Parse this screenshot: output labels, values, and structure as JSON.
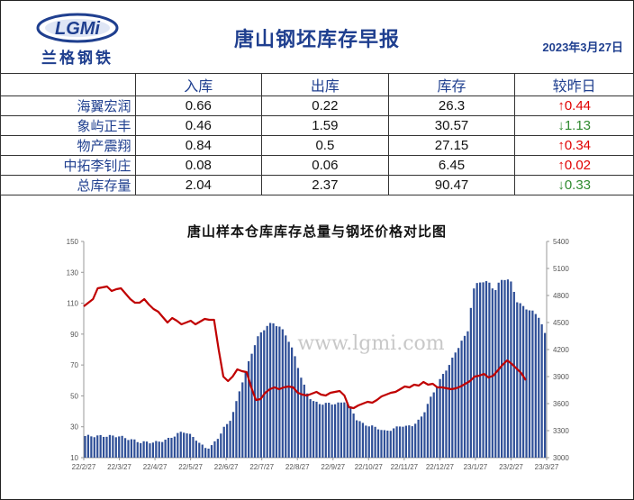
{
  "header": {
    "logo_text": "兰格钢铁",
    "logo_mark": "LGMi",
    "title": "唐山钢坯库存早报",
    "date": "2023年3月27日"
  },
  "table": {
    "columns": [
      "",
      "入库",
      "出库",
      "库存",
      "较昨日"
    ],
    "rows": [
      {
        "name": "海翼宏润",
        "in": "0.66",
        "out": "0.22",
        "stock": "26.3",
        "arrow": "↑",
        "change": "0.44",
        "dir": "up"
      },
      {
        "name": "象屿正丰",
        "in": "0.46",
        "out": "1.59",
        "stock": "30.57",
        "arrow": "↓",
        "change": "1.13",
        "dir": "down"
      },
      {
        "name": "物产震翔",
        "in": "0.84",
        "out": "0.5",
        "stock": "27.15",
        "arrow": "↑",
        "change": "0.34",
        "dir": "up"
      },
      {
        "name": "中拓李钊庄",
        "in": "0.08",
        "out": "0.06",
        "stock": "6.45",
        "arrow": "↑",
        "change": "0.02",
        "dir": "up"
      },
      {
        "name": "总库存量",
        "in": "2.04",
        "out": "2.37",
        "stock": "90.47",
        "arrow": "↓",
        "change": "0.33",
        "dir": "down"
      }
    ]
  },
  "watermark": "www.lgmi.com",
  "colors": {
    "bar": "#2f4f97",
    "line": "#c00000",
    "title": "#1f3f8f"
  },
  "chart_data": {
    "type": "bar+line",
    "title": "唐山样本仓库库存总量与钢坯价格对比图",
    "left_ticks": [
      "150",
      "130",
      "110",
      "90",
      "70",
      "50",
      "30",
      "10"
    ],
    "right_ticks": [
      "5400",
      "5100",
      "4800",
      "4500",
      "4200",
      "3900",
      "3600",
      "3300",
      "3000"
    ],
    "x_ticks": [
      "22/2/27",
      "22/3/27",
      "22/4/27",
      "22/5/27",
      "22/6/27",
      "22/7/27",
      "22/8/27",
      "22/9/27",
      "22/10/27",
      "22/11/27",
      "22/12/27",
      "23/1/27",
      "23/2/27",
      "23/3/27"
    ],
    "ylim_left": [
      10,
      150
    ],
    "ylim_right": [
      3000,
      5400
    ],
    "stock_series_points": [
      [
        0,
        24
      ],
      [
        6,
        24
      ],
      [
        8,
        22
      ],
      [
        10,
        20
      ],
      [
        13,
        20
      ],
      [
        15,
        22
      ],
      [
        17,
        26
      ],
      [
        18,
        27
      ],
      [
        20,
        22
      ],
      [
        21,
        18
      ],
      [
        22,
        16
      ],
      [
        23,
        18
      ],
      [
        24,
        23
      ],
      [
        25,
        29
      ],
      [
        26,
        33
      ],
      [
        27,
        42
      ],
      [
        28,
        55
      ],
      [
        29,
        66
      ],
      [
        30,
        77
      ],
      [
        31,
        87
      ],
      [
        32,
        92
      ],
      [
        33,
        96
      ],
      [
        34,
        97
      ],
      [
        35,
        95
      ],
      [
        36,
        91
      ],
      [
        37,
        84
      ],
      [
        38,
        74
      ],
      [
        39,
        62
      ],
      [
        40,
        52
      ],
      [
        41,
        47
      ],
      [
        42,
        45
      ],
      [
        43,
        45
      ],
      [
        44,
        45
      ],
      [
        45,
        45
      ],
      [
        46,
        45
      ],
      [
        47,
        47
      ],
      [
        48,
        42
      ],
      [
        49,
        35
      ],
      [
        50,
        32
      ],
      [
        51,
        31
      ],
      [
        52,
        30
      ],
      [
        53,
        29
      ],
      [
        54,
        27
      ],
      [
        55,
        28
      ],
      [
        56,
        29
      ],
      [
        57,
        31
      ],
      [
        58,
        30
      ],
      [
        59,
        31
      ],
      [
        60,
        33
      ],
      [
        61,
        38
      ],
      [
        62,
        46
      ],
      [
        63,
        53
      ],
      [
        64,
        60
      ],
      [
        65,
        66
      ],
      [
        66,
        72
      ],
      [
        67,
        79
      ],
      [
        68,
        86
      ],
      [
        69,
        90
      ],
      [
        70,
        118
      ],
      [
        71,
        124
      ],
      [
        72,
        124
      ],
      [
        73,
        123
      ],
      [
        74,
        118
      ],
      [
        75,
        125
      ],
      [
        76,
        126
      ],
      [
        77,
        123
      ],
      [
        78,
        111
      ],
      [
        79,
        108
      ],
      [
        80,
        106
      ],
      [
        81,
        104
      ],
      [
        82,
        101
      ],
      [
        83,
        90
      ]
    ],
    "price_series_points": [
      [
        0,
        4680
      ],
      [
        2,
        4760
      ],
      [
        3,
        4880
      ],
      [
        5,
        4900
      ],
      [
        6,
        4850
      ],
      [
        7,
        4870
      ],
      [
        8,
        4880
      ],
      [
        9,
        4820
      ],
      [
        10,
        4760
      ],
      [
        11,
        4720
      ],
      [
        12,
        4720
      ],
      [
        13,
        4760
      ],
      [
        14,
        4700
      ],
      [
        15,
        4650
      ],
      [
        16,
        4620
      ],
      [
        17,
        4560
      ],
      [
        18,
        4500
      ],
      [
        19,
        4550
      ],
      [
        20,
        4520
      ],
      [
        21,
        4480
      ],
      [
        22,
        4500
      ],
      [
        23,
        4520
      ],
      [
        24,
        4480
      ],
      [
        25,
        4510
      ],
      [
        26,
        4540
      ],
      [
        27,
        4530
      ],
      [
        28,
        4530
      ],
      [
        29,
        4200
      ],
      [
        30,
        3900
      ],
      [
        31,
        3850
      ],
      [
        32,
        3900
      ],
      [
        33,
        3980
      ],
      [
        34,
        3960
      ],
      [
        35,
        3950
      ],
      [
        36,
        3780
      ],
      [
        37,
        3640
      ],
      [
        38,
        3650
      ],
      [
        39,
        3720
      ],
      [
        40,
        3760
      ],
      [
        41,
        3780
      ],
      [
        42,
        3760
      ],
      [
        43,
        3780
      ],
      [
        44,
        3790
      ],
      [
        45,
        3780
      ],
      [
        46,
        3720
      ],
      [
        47,
        3700
      ],
      [
        48,
        3690
      ],
      [
        49,
        3710
      ],
      [
        50,
        3730
      ],
      [
        51,
        3700
      ],
      [
        52,
        3690
      ],
      [
        53,
        3720
      ],
      [
        54,
        3730
      ],
      [
        55,
        3740
      ],
      [
        56,
        3690
      ],
      [
        57,
        3560
      ],
      [
        58,
        3550
      ],
      [
        59,
        3580
      ],
      [
        60,
        3600
      ],
      [
        61,
        3620
      ],
      [
        62,
        3610
      ],
      [
        63,
        3640
      ],
      [
        64,
        3680
      ],
      [
        65,
        3700
      ],
      [
        66,
        3720
      ],
      [
        67,
        3730
      ],
      [
        68,
        3760
      ],
      [
        69,
        3790
      ],
      [
        70,
        3780
      ],
      [
        71,
        3810
      ],
      [
        72,
        3800
      ],
      [
        73,
        3840
      ],
      [
        74,
        3810
      ],
      [
        75,
        3820
      ],
      [
        76,
        3780
      ],
      [
        77,
        3780
      ],
      [
        78,
        3770
      ],
      [
        79,
        3760
      ],
      [
        80,
        3770
      ],
      [
        81,
        3790
      ],
      [
        82,
        3820
      ],
      [
        83,
        3850
      ],
      [
        84,
        3900
      ],
      [
        85,
        3910
      ],
      [
        86,
        3930
      ],
      [
        87,
        3890
      ],
      [
        88,
        3910
      ],
      [
        89,
        3970
      ],
      [
        90,
        4030
      ],
      [
        91,
        4080
      ],
      [
        92,
        4040
      ],
      [
        93,
        3990
      ],
      [
        94,
        3940
      ],
      [
        95,
        3860
      ]
    ]
  }
}
